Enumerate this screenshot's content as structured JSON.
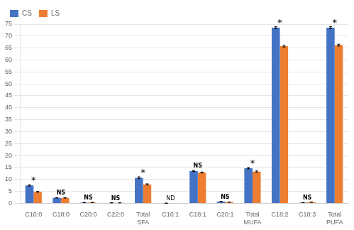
{
  "chart_data": {
    "type": "bar",
    "categories": [
      "C16:0",
      "C18:0",
      "C20:0",
      "C22:0",
      "Total\nSFA",
      "C16:1",
      "C18:1",
      "C20:1",
      "Total\nMUFA",
      "C18:2",
      "C18:3",
      "Total\nPUFA"
    ],
    "series": [
      {
        "name": "CS",
        "color": "#4472C4",
        "values": [
          7.5,
          2.3,
          0.3,
          0.2,
          10.7,
          0.05,
          13.5,
          0.7,
          14.7,
          73.5,
          0.3,
          73.5
        ],
        "errors": [
          0.25,
          0.1,
          0.05,
          0.02,
          0.4,
          0.02,
          0.2,
          0.08,
          0.3,
          0.4,
          0.03,
          0.4
        ]
      },
      {
        "name": "LS",
        "color": "#ED7D31",
        "values": [
          4.8,
          2.3,
          0.35,
          0.2,
          7.9,
          0.0,
          12.9,
          0.5,
          13.3,
          65.8,
          0.5,
          66.2
        ],
        "errors": [
          0.15,
          0.1,
          0.04,
          0.02,
          0.25,
          0.0,
          0.2,
          0.04,
          0.25,
          0.4,
          0.04,
          0.4
        ]
      }
    ],
    "annotations": [
      "*",
      "NS",
      "NS",
      "NS",
      "*",
      "ND",
      "NS",
      "NS",
      "*",
      "*",
      "NS",
      "*"
    ],
    "ylim": [
      0,
      75
    ],
    "yticks": [
      0,
      5,
      10,
      15,
      20,
      25,
      30,
      35,
      40,
      45,
      50,
      55,
      60,
      65,
      70,
      75
    ],
    "grid": true,
    "legend": "upper left"
  }
}
